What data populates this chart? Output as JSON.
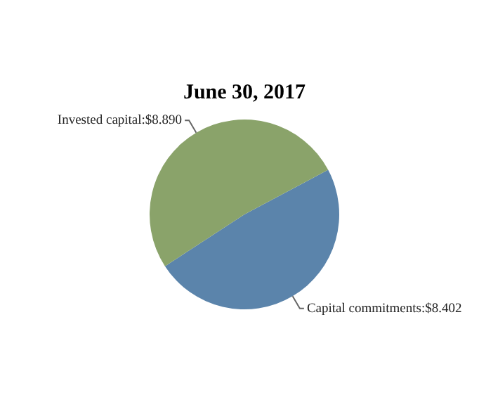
{
  "chart_data": {
    "type": "pie",
    "title": "June 30, 2017",
    "categories": [
      "Capital commitments",
      "Invested capital"
    ],
    "values": [
      8.402,
      8.89
    ],
    "colors": [
      "#5b84ab",
      "#8aa36a"
    ],
    "value_labels": [
      "$8.402",
      "$8.890"
    ],
    "legend": false
  }
}
